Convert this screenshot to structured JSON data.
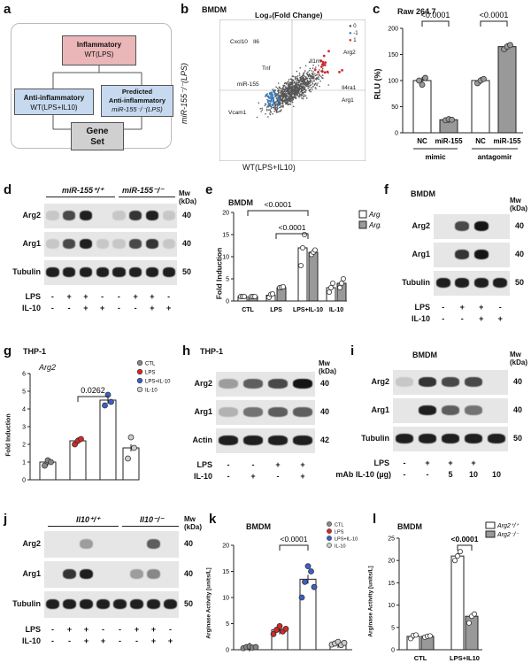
{
  "panels": {
    "a": {
      "label": "a",
      "inflammatory": "Inflammatory",
      "inflammatory_sub": "WT(LPS)",
      "anti": "Anti-inflammatory",
      "anti_sub": "WT(LPS+IL10)",
      "predicted": "Predicted",
      "predicted_2": "Anti-inflammatory",
      "predicted_sub": "miR-155⁻/⁻(LPS)",
      "gene": "Gene",
      "set": "Set"
    },
    "b": {
      "label": "b",
      "tag": "BMDM",
      "title": "Log₂(Fold Change)",
      "ylabel": "miR-155⁻/⁻(LPS)",
      "xlabel": "WT(LPS+IL10)",
      "legend": [
        "0",
        "-1",
        "1"
      ],
      "genes": [
        "Cxcl10",
        "Il6",
        "Tnf",
        "miR-155",
        "Vcam1",
        "Il1rn",
        "Arg2",
        "Il4ra1",
        "Arg1"
      ],
      "colors": {
        "zero": "#555555",
        "neg": "#3a7fc1",
        "pos": "#d62728"
      }
    },
    "c": {
      "label": "c",
      "tag": "Raw 264.7",
      "ylabel": "RLU (%)",
      "pvals": [
        "<0.0001",
        "<0.0001"
      ],
      "groups": [
        "mimic",
        "antagomir"
      ],
      "categories": [
        "NC",
        "miR-155",
        "NC",
        "miR-155"
      ]
    },
    "d": {
      "label": "d",
      "geno1": "miR-155⁺/⁺",
      "geno2": "miR-155⁻/⁻",
      "mw": "Mw (kDa)",
      "rows": [
        "Arg2",
        "Arg1",
        "Tubulin"
      ],
      "mws": [
        "40",
        "40",
        "50"
      ],
      "lps_label": "LPS",
      "il10_label": "IL-10",
      "lps": [
        "-",
        "+",
        "+",
        "-",
        "-",
        "+",
        "+",
        "-"
      ],
      "il10": [
        "-",
        "-",
        "+",
        "+",
        "-",
        "-",
        "+",
        "+"
      ]
    },
    "e": {
      "label": "e",
      "tag": "BMDM",
      "ylabel": "Fold Induction",
      "pvals": [
        "<0.0001",
        "<0.0001"
      ],
      "legend": [
        "Arg1",
        "Arg2"
      ],
      "categories": [
        "CTL",
        "LPS",
        "LPS+IL-10",
        "IL-10"
      ]
    },
    "f": {
      "label": "f",
      "tag": "BMDM",
      "mw": "Mw (kDa)",
      "rows": [
        "Arg2",
        "Arg1",
        "Tubulin"
      ],
      "mws": [
        "40",
        "40",
        "50"
      ],
      "lps_label": "LPS",
      "il10_label": "IL-10",
      "lps": [
        "-",
        "+",
        "+",
        "-"
      ],
      "il10": [
        "-",
        "-",
        "+",
        "+"
      ]
    },
    "g": {
      "label": "g",
      "tag": "THP-1",
      "gene": "Arg2",
      "ylabel": "Fold Induction",
      "pval": "0.0262",
      "legend": [
        "CTL",
        "LPS",
        "LPS+IL-10",
        "IL-10"
      ]
    },
    "h": {
      "label": "h",
      "tag": "THP-1",
      "mw": "Mw (kDa)",
      "rows": [
        "Arg2",
        "Arg1",
        "Actin"
      ],
      "mws": [
        "40",
        "40",
        "42"
      ],
      "lps_label": "LPS",
      "il10_label": "IL-10",
      "lps": [
        "-",
        "-",
        "+",
        "+"
      ],
      "il10": [
        "-",
        "+",
        "-",
        "+"
      ]
    },
    "i": {
      "label": "i",
      "tag": "BMDM",
      "mw": "Mw (kDa)",
      "rows": [
        "Arg2",
        "Arg1",
        "Tubulin"
      ],
      "mws": [
        "40",
        "40",
        "50"
      ],
      "lps_label": "LPS",
      "mab_label": "mAb IL-10 (µg)",
      "lps": [
        "-",
        "+",
        "+",
        "+",
        ""
      ],
      "mab": [
        "-",
        "-",
        "5",
        "10",
        "10"
      ]
    },
    "j": {
      "label": "j",
      "geno1": "Il10⁺/⁺",
      "geno2": "Il10⁻/⁻",
      "mw": "Mw (kDa)",
      "rows": [
        "Arg2",
        "Arg1",
        "Tubulin"
      ],
      "mws": [
        "40",
        "40",
        "50"
      ],
      "lps_label": "LPS",
      "il10_label": "IL-10",
      "lps": [
        "-",
        "+",
        "+",
        "-",
        "-",
        "+",
        "+",
        "-"
      ],
      "il10": [
        "-",
        "-",
        "+",
        "+",
        "-",
        "-",
        "+",
        "+"
      ]
    },
    "k": {
      "label": "k",
      "tag": "BMDM",
      "ylabel": "Arginase Activity [units/L]",
      "pval": "<0.0001",
      "legend": [
        "CTL",
        "LPS",
        "LPS+IL-10",
        "IL-10"
      ]
    },
    "l": {
      "label": "l",
      "tag": "BMDM",
      "ylabel": "Arginase Activity [units/L]",
      "pval": "<0.0001",
      "legend": [
        "Arg2⁺/⁺",
        "Arg2⁻/⁻"
      ],
      "categories": [
        "CTL",
        "LPS+IL10"
      ]
    }
  },
  "chart_data": [
    {
      "id": "c",
      "type": "bar",
      "ylim": [
        0,
        200
      ],
      "yticks": [
        0,
        50,
        100,
        150,
        200
      ],
      "categories": [
        "NC",
        "miR-155",
        "NC",
        "miR-155"
      ],
      "values": [
        100,
        25,
        100,
        165
      ],
      "colors": [
        "#ffffff",
        "#999999",
        "#ffffff",
        "#999999"
      ],
      "points": [
        [
          100,
          92,
          105
        ],
        [
          24,
          26,
          25
        ],
        [
          95,
          100,
          103
        ],
        [
          160,
          165,
          168
        ]
      ]
    },
    {
      "id": "e",
      "type": "bar",
      "ylim": [
        0,
        20
      ],
      "yticks": [
        0,
        5,
        10,
        15,
        20
      ],
      "categories": [
        "CTL",
        "LPS",
        "LPS+IL-10",
        "IL-10"
      ],
      "series": [
        {
          "name": "Arg1",
          "color": "#ffffff",
          "values": [
            1,
            1.3,
            12,
            3
          ],
          "points": [
            [
              1,
              1,
              1
            ],
            [
              0.8,
              1.5,
              1.6
            ],
            [
              8,
              12,
              15
            ],
            [
              2,
              3,
              4
            ]
          ]
        },
        {
          "name": "Arg2",
          "color": "#999999",
          "values": [
            1,
            3,
            11,
            4
          ],
          "points": [
            [
              1,
              1,
              1
            ],
            [
              3,
              3.1,
              3.2
            ],
            [
              10.5,
              11,
              11.5
            ],
            [
              3,
              4,
              5
            ]
          ]
        }
      ]
    },
    {
      "id": "g",
      "type": "bar",
      "ylim": [
        0,
        6
      ],
      "yticks": [
        0,
        1,
        2,
        3,
        4,
        5,
        6
      ],
      "categories": [
        "CTL",
        "LPS",
        "LPS+IL-10",
        "IL-10"
      ],
      "values": [
        1,
        2.2,
        4.5,
        1.8
      ],
      "pointcolors": [
        "#888888",
        "#d62728",
        "#3a5fcd",
        "#cccccc"
      ],
      "points": [
        [
          0.8,
          1.1,
          1.0
        ],
        [
          2.0,
          2.2,
          2.3
        ],
        [
          4.2,
          4.8,
          4.4
        ],
        [
          1.2,
          2.4,
          1.8
        ]
      ]
    },
    {
      "id": "k",
      "type": "bar",
      "ylim": [
        0,
        20
      ],
      "yticks": [
        0,
        5,
        10,
        15,
        20
      ],
      "categories": [
        "CTL",
        "LPS",
        "LPS+IL-10",
        "IL-10"
      ],
      "values": [
        0.5,
        3.8,
        13.5,
        1.2
      ],
      "pointcolors": [
        "#888888",
        "#d62728",
        "#3a5fcd",
        "#cccccc"
      ],
      "points": [
        [
          0.3,
          0.5,
          0.6,
          0.4,
          0.5
        ],
        [
          3.0,
          3.8,
          4.5,
          3.5,
          4.0
        ],
        [
          10,
          13,
          16,
          15,
          12
        ],
        [
          1.0,
          1.2,
          1.5,
          0.9,
          1.3
        ]
      ]
    },
    {
      "id": "l",
      "type": "bar",
      "ylim": [
        0,
        25
      ],
      "yticks": [
        0,
        5,
        10,
        15,
        20,
        25
      ],
      "categories": [
        "CTL",
        "LPS+IL10"
      ],
      "series": [
        {
          "name": "Arg2⁺/⁺",
          "color": "#ffffff",
          "values": [
            3,
            21
          ],
          "points": [
            [
              2.5,
              3.2,
              3.3
            ],
            [
              20,
              21,
              22
            ]
          ]
        },
        {
          "name": "Arg2⁻/⁻",
          "color": "#999999",
          "values": [
            3,
            7.5
          ],
          "points": [
            [
              2.8,
              3,
              3.1
            ],
            [
              6,
              7.5,
              8
            ]
          ]
        }
      ]
    }
  ]
}
